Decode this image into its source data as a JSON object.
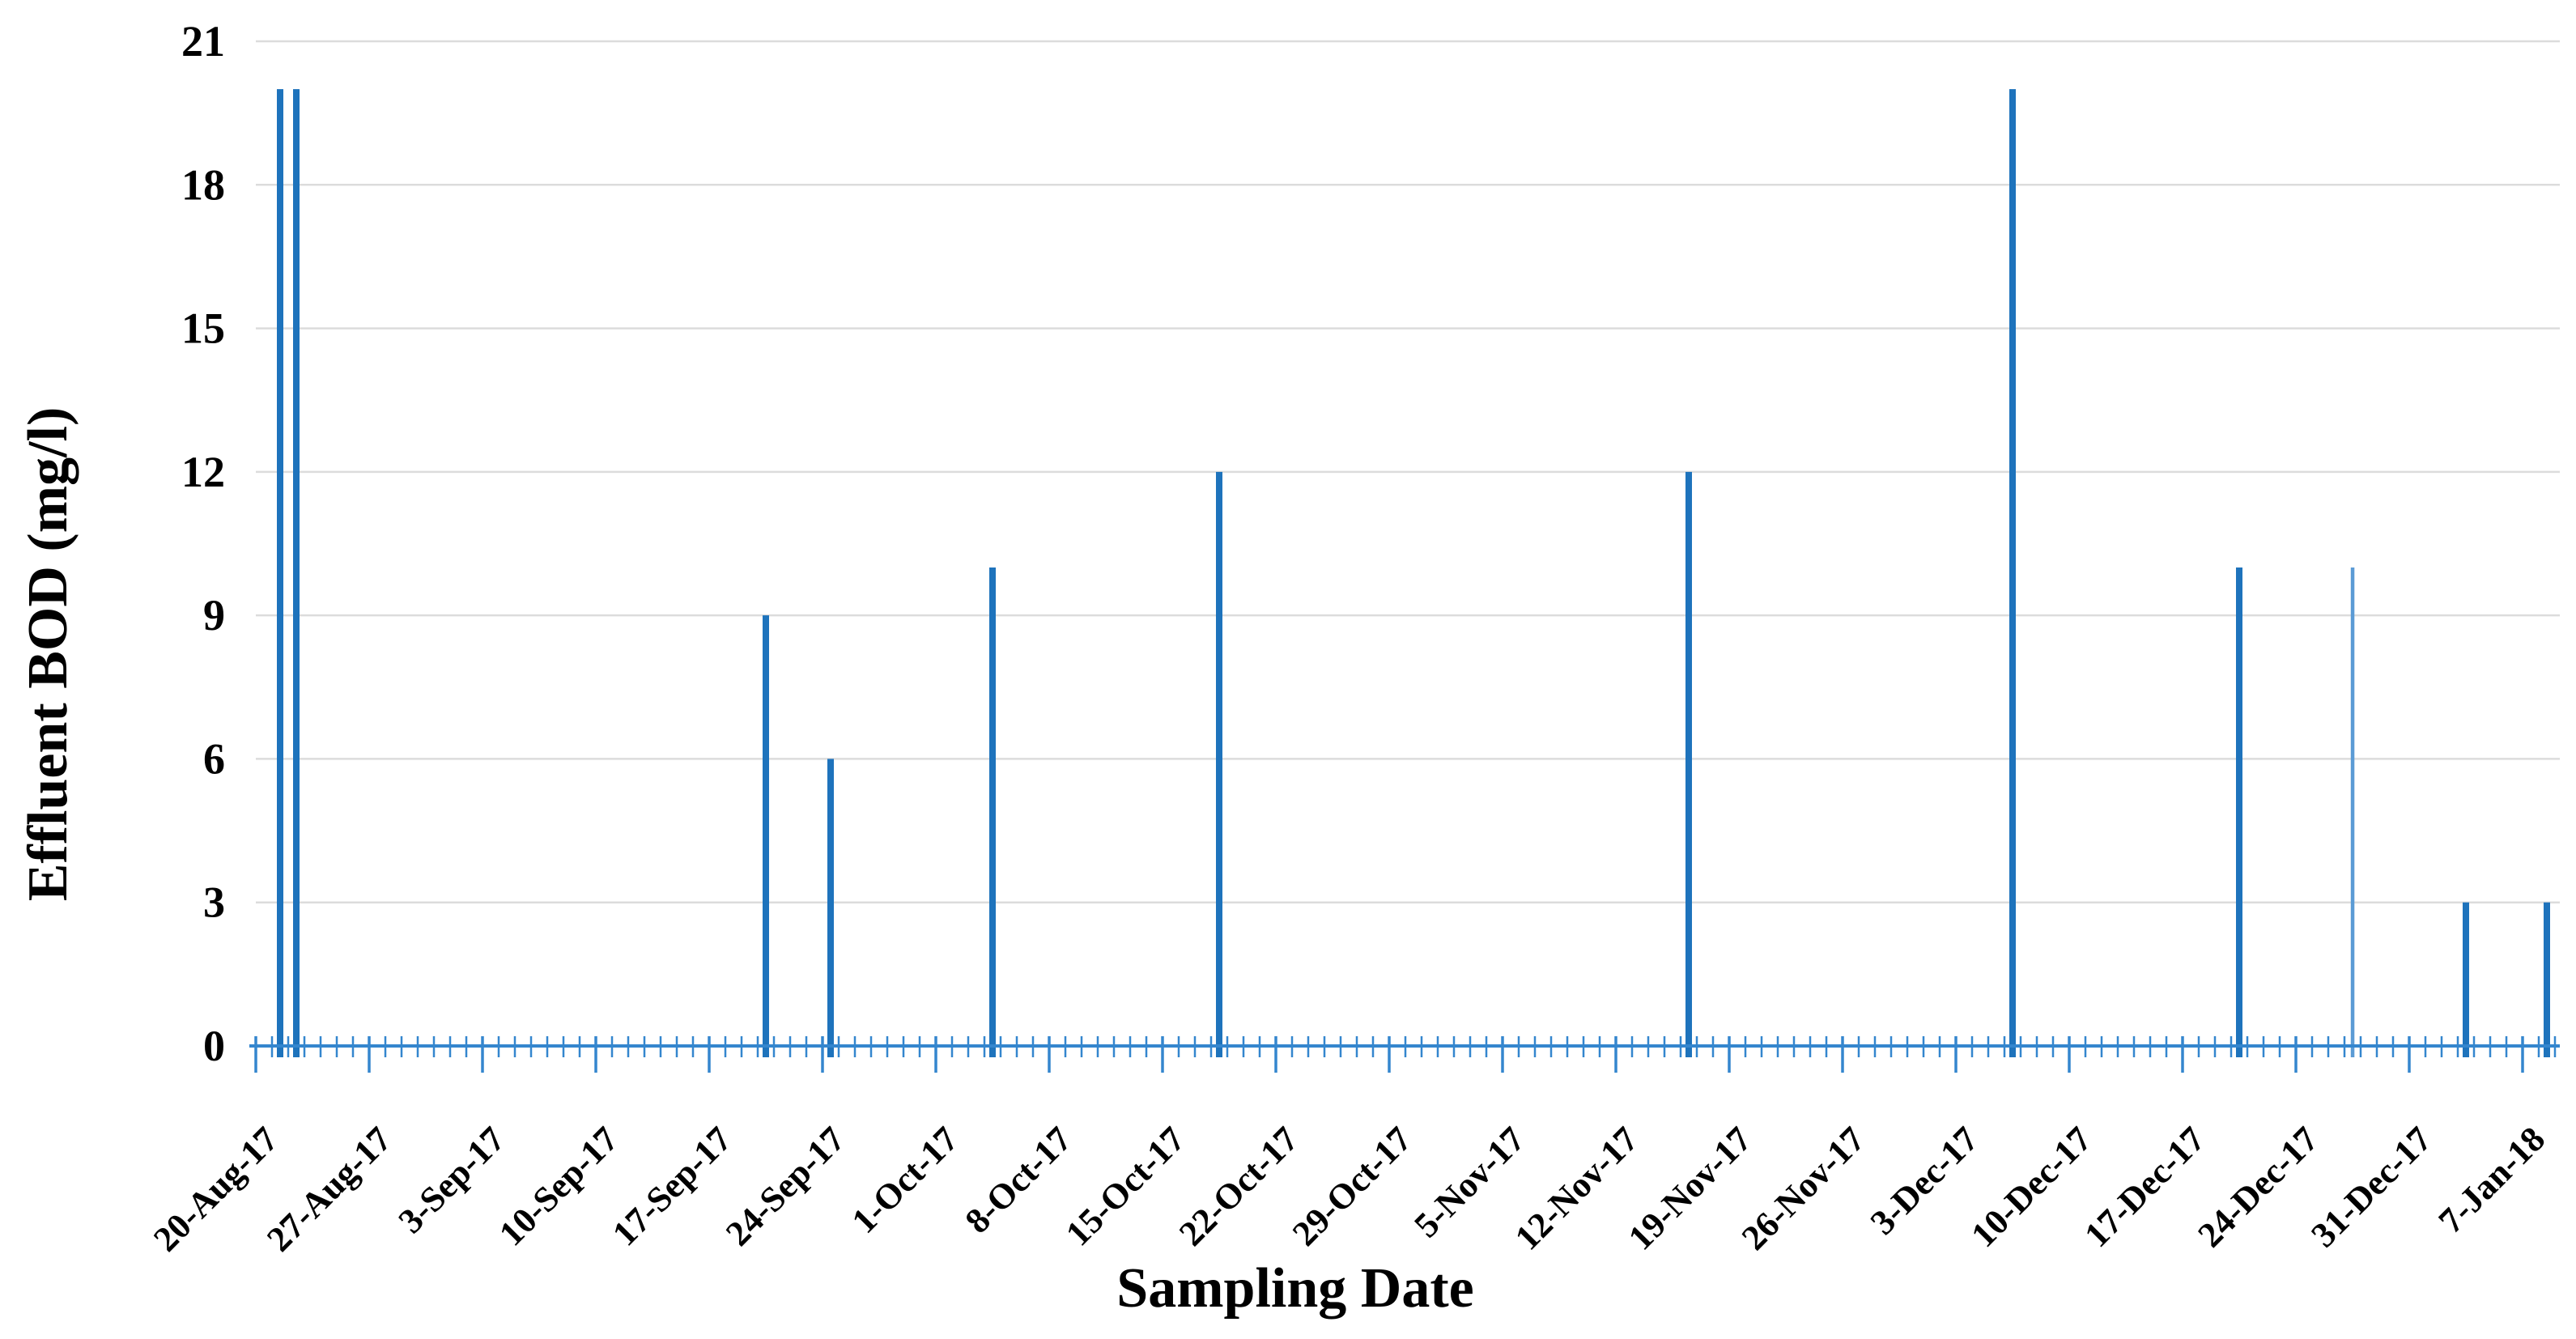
{
  "chart_data": {
    "type": "bar",
    "title": "",
    "xlabel": "Sampling Date",
    "ylabel": "Effluent BOD (mg/l)",
    "ylim": [
      0,
      21
    ],
    "y_ticks": [
      0,
      3,
      6,
      9,
      12,
      15,
      18,
      21
    ],
    "grid": true,
    "legend": false,
    "x_axis": {
      "unit": "date",
      "first_label": "20-Aug-17",
      "last_label": "7-Jan-18",
      "major_tick_every_days": 7,
      "minor_tick_every_days": 1,
      "label_rotation_deg": 45
    },
    "x_tick_labels": [
      "20-Aug-17",
      "27-Aug-17",
      "3-Sep-17",
      "10-Sep-17",
      "17-Sep-17",
      "24-Sep-17",
      "1-Oct-17",
      "8-Oct-17",
      "15-Oct-17",
      "22-Oct-17",
      "29-Oct-17",
      "5-Nov-17",
      "12-Nov-17",
      "19-Nov-17",
      "26-Nov-17",
      "3-Dec-17",
      "10-Dec-17",
      "17-Dec-17",
      "24-Dec-17",
      "31-Dec-17",
      "7-Jan-18"
    ],
    "points": [
      {
        "date": "21-Aug-17",
        "days_from_start": 1,
        "value": 20
      },
      {
        "date": "22-Aug-17",
        "days_from_start": 2,
        "value": 20
      },
      {
        "date": "20-Sep-17",
        "days_from_start": 31,
        "value": 9
      },
      {
        "date": "24-Sep-17",
        "days_from_start": 35,
        "value": 6
      },
      {
        "date": "4-Oct-17",
        "days_from_start": 45,
        "value": 10
      },
      {
        "date": "18-Oct-17",
        "days_from_start": 59,
        "value": 12
      },
      {
        "date": "16-Nov-17",
        "days_from_start": 88,
        "value": 12
      },
      {
        "date": "6-Dec-17",
        "days_from_start": 108,
        "value": 20
      },
      {
        "date": "20-Dec-17",
        "days_from_start": 122,
        "value": 10
      },
      {
        "date": "27-Dec-17",
        "days_from_start": 129,
        "value": 10,
        "thin_light_bar": true
      },
      {
        "date": "3-Jan-18",
        "days_from_start": 136,
        "value": 3
      },
      {
        "date": "8-Jan-18",
        "days_from_start": 141,
        "value": 3
      }
    ],
    "colors": {
      "bar": "#1E73BC",
      "bar_light": "#5B9BD5",
      "axis": "#3486CE",
      "gridline": "#DCDCDC",
      "text": "#000000",
      "background": "#FFFFFF"
    }
  }
}
